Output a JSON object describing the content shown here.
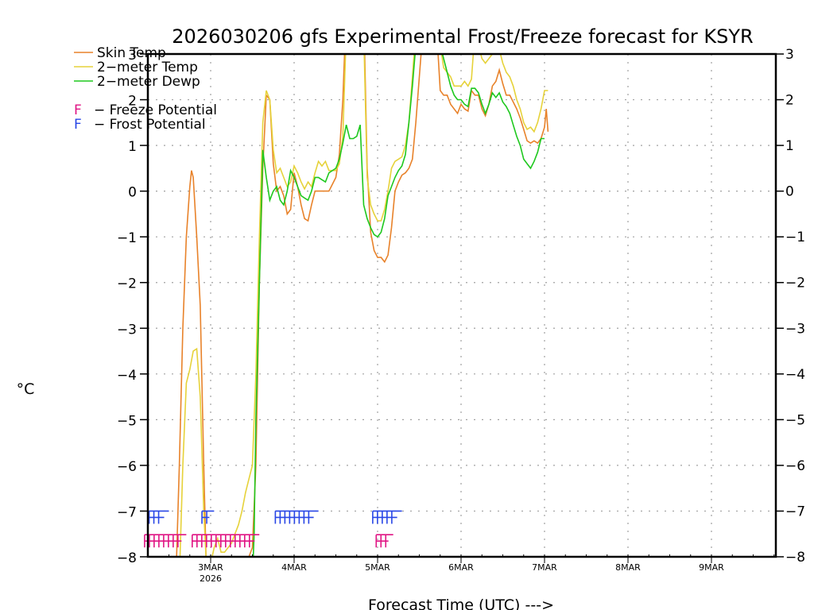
{
  "chart_data": {
    "type": "line",
    "title": "2026030206 gfs Experimental Frost/Freeze forecast for KSYR",
    "xlabel": "Forecast Time (UTC) --->",
    "ylabel": "°C",
    "x_units": "hours since 2026-03-02 06Z",
    "xlim": [
      0,
      180
    ],
    "ylim": [
      -8,
      3
    ],
    "yticks": [
      3,
      2,
      1,
      0,
      -1,
      -2,
      -3,
      -4,
      -5,
      -6,
      -7,
      -8
    ],
    "ytick_labels": [
      "3",
      "2",
      "1",
      "0",
      "−1",
      "−2",
      "−3",
      "−4",
      "−5",
      "−6",
      "−7",
      "−8"
    ],
    "xticks": [
      {
        "hour": 18,
        "label": "3MAR",
        "sublabel": "2026"
      },
      {
        "hour": 42,
        "label": "4MAR",
        "sublabel": ""
      },
      {
        "hour": 66,
        "label": "5MAR",
        "sublabel": ""
      },
      {
        "hour": 90,
        "label": "6MAR",
        "sublabel": ""
      },
      {
        "hour": 114,
        "label": "7MAR",
        "sublabel": ""
      },
      {
        "hour": 138,
        "label": "8MAR",
        "sublabel": ""
      },
      {
        "hour": 162,
        "label": "9MAR",
        "sublabel": ""
      }
    ],
    "grid": true,
    "legend_position": "top-left",
    "series": [
      {
        "name": "Skin Temp",
        "color": "#e8822a",
        "points": [
          [
            8,
            -8.5
          ],
          [
            9,
            -6
          ],
          [
            10,
            -3
          ],
          [
            11,
            -1
          ],
          [
            12,
            0.1
          ],
          [
            12.5,
            0.45
          ],
          [
            13,
            0.3
          ],
          [
            14,
            -1
          ],
          [
            15,
            -2.5
          ],
          [
            16,
            -6
          ],
          [
            17,
            -9
          ],
          [
            24,
            -9
          ],
          [
            30,
            -7.8
          ],
          [
            31,
            -6
          ],
          [
            32,
            -2
          ],
          [
            33,
            0.5
          ],
          [
            34,
            2.1
          ],
          [
            35,
            2.0
          ],
          [
            36,
            0.6
          ],
          [
            37,
            0.0
          ],
          [
            38,
            0.1
          ],
          [
            39,
            -0.1
          ],
          [
            40,
            -0.5
          ],
          [
            41,
            -0.4
          ],
          [
            42,
            0.4
          ],
          [
            43,
            0.1
          ],
          [
            44,
            -0.3
          ],
          [
            45,
            -0.6
          ],
          [
            46,
            -0.65
          ],
          [
            47,
            -0.3
          ],
          [
            48,
            0.0
          ],
          [
            50,
            0.0
          ],
          [
            52,
            0.0
          ],
          [
            54,
            0.3
          ],
          [
            55,
            0.8
          ],
          [
            56,
            2.0
          ],
          [
            57,
            4.0
          ],
          [
            62,
            4.0
          ],
          [
            63,
            0.5
          ],
          [
            64,
            -0.9
          ],
          [
            65,
            -1.3
          ],
          [
            66,
            -1.45
          ],
          [
            67,
            -1.45
          ],
          [
            68,
            -1.55
          ],
          [
            69,
            -1.4
          ],
          [
            70,
            -0.8
          ],
          [
            71,
            0.0
          ],
          [
            72,
            0.2
          ],
          [
            73,
            0.35
          ],
          [
            74,
            0.4
          ],
          [
            75,
            0.5
          ],
          [
            76,
            0.7
          ],
          [
            77,
            1.5
          ],
          [
            78,
            2.5
          ],
          [
            79,
            3.5
          ],
          [
            83,
            3.5
          ],
          [
            84,
            2.2
          ],
          [
            85,
            2.1
          ],
          [
            86,
            2.1
          ],
          [
            87,
            1.9
          ],
          [
            88,
            1.8
          ],
          [
            89,
            1.7
          ],
          [
            90,
            1.9
          ],
          [
            91,
            1.8
          ],
          [
            92,
            1.75
          ],
          [
            93,
            2.2
          ],
          [
            94,
            2.1
          ],
          [
            95,
            2.1
          ],
          [
            96,
            1.8
          ],
          [
            97,
            1.65
          ],
          [
            98,
            1.9
          ],
          [
            99,
            2.3
          ],
          [
            100,
            2.4
          ],
          [
            101,
            2.65
          ],
          [
            102,
            2.35
          ],
          [
            103,
            2.1
          ],
          [
            104,
            2.1
          ],
          [
            105,
            1.95
          ],
          [
            106,
            1.8
          ],
          [
            107,
            1.6
          ],
          [
            108,
            1.35
          ],
          [
            109,
            1.1
          ],
          [
            110,
            1.05
          ],
          [
            111,
            1.1
          ],
          [
            112,
            1.05
          ],
          [
            113,
            1.15
          ],
          [
            114,
            1.4
          ],
          [
            114.5,
            1.8
          ],
          [
            115,
            1.3
          ]
        ]
      },
      {
        "name": "2-meter Temp",
        "color": "#e6d23a",
        "points": [
          [
            9,
            -8.5
          ],
          [
            10,
            -6
          ],
          [
            11,
            -4.2
          ],
          [
            12,
            -3.9
          ],
          [
            13,
            -3.5
          ],
          [
            14,
            -3.45
          ],
          [
            15,
            -4.5
          ],
          [
            16,
            -7
          ],
          [
            17,
            -8.5
          ],
          [
            19,
            -7.8
          ],
          [
            20,
            -7.6
          ],
          [
            21,
            -7.9
          ],
          [
            22,
            -7.9
          ],
          [
            23,
            -7.8
          ],
          [
            24,
            -7.7
          ],
          [
            25,
            -7.5
          ],
          [
            26,
            -7.3
          ],
          [
            27,
            -7.0
          ],
          [
            28,
            -6.6
          ],
          [
            29,
            -6.3
          ],
          [
            30,
            -6.0
          ],
          [
            31,
            -4
          ],
          [
            32,
            -1
          ],
          [
            33,
            1.5
          ],
          [
            34,
            2.2
          ],
          [
            35,
            2.0
          ],
          [
            36,
            0.9
          ],
          [
            37,
            0.4
          ],
          [
            38,
            0.5
          ],
          [
            39,
            0.3
          ],
          [
            40,
            0.1
          ],
          [
            41,
            0.2
          ],
          [
            42,
            0.55
          ],
          [
            43,
            0.4
          ],
          [
            44,
            0.2
          ],
          [
            45,
            0.05
          ],
          [
            46,
            0.2
          ],
          [
            47,
            0.1
          ],
          [
            48,
            0.4
          ],
          [
            49,
            0.65
          ],
          [
            50,
            0.55
          ],
          [
            51,
            0.65
          ],
          [
            52,
            0.45
          ],
          [
            54,
            0.45
          ],
          [
            55,
            0.6
          ],
          [
            56,
            1.2
          ],
          [
            57,
            3.5
          ],
          [
            62,
            3.5
          ],
          [
            63,
            0.3
          ],
          [
            64,
            -0.3
          ],
          [
            65,
            -0.5
          ],
          [
            66,
            -0.65
          ],
          [
            67,
            -0.65
          ],
          [
            68,
            -0.4
          ],
          [
            69,
            0.0
          ],
          [
            70,
            0.5
          ],
          [
            71,
            0.65
          ],
          [
            72,
            0.7
          ],
          [
            73,
            0.75
          ],
          [
            74,
            1.0
          ],
          [
            75,
            1.5
          ],
          [
            76,
            2.5
          ],
          [
            77,
            3.5
          ],
          [
            84,
            3.2
          ],
          [
            85,
            2.7
          ],
          [
            86,
            2.6
          ],
          [
            87,
            2.5
          ],
          [
            88,
            2.3
          ],
          [
            89,
            2.3
          ],
          [
            90,
            2.3
          ],
          [
            91,
            2.4
          ],
          [
            92,
            2.3
          ],
          [
            93,
            2.45
          ],
          [
            94,
            3.5
          ],
          [
            96,
            2.9
          ],
          [
            97,
            2.8
          ],
          [
            98,
            2.9
          ],
          [
            99,
            3.0
          ],
          [
            100,
            3.0
          ],
          [
            101,
            3.1
          ],
          [
            102,
            2.8
          ],
          [
            103,
            2.6
          ],
          [
            104,
            2.5
          ],
          [
            105,
            2.3
          ],
          [
            106,
            2.0
          ],
          [
            107,
            1.8
          ],
          [
            108,
            1.5
          ],
          [
            109,
            1.35
          ],
          [
            110,
            1.4
          ],
          [
            111,
            1.3
          ],
          [
            112,
            1.5
          ],
          [
            113,
            1.8
          ],
          [
            114,
            2.2
          ],
          [
            115,
            2.2
          ]
        ]
      },
      {
        "name": "2-meter Dewp",
        "color": "#1ec81e",
        "points": [
          [
            16,
            -9
          ],
          [
            17,
            -8.2
          ],
          [
            18,
            -9
          ],
          [
            30,
            -8.5
          ],
          [
            30.5,
            -7.5
          ],
          [
            31,
            -5
          ],
          [
            32,
            -2
          ],
          [
            33,
            0.9
          ],
          [
            34,
            0.3
          ],
          [
            35,
            -0.2
          ],
          [
            36,
            0.0
          ],
          [
            37,
            0.1
          ],
          [
            38,
            -0.2
          ],
          [
            39,
            -0.3
          ],
          [
            40,
            0.0
          ],
          [
            41,
            0.45
          ],
          [
            42,
            0.3
          ],
          [
            43,
            0.1
          ],
          [
            44,
            -0.1
          ],
          [
            45,
            -0.15
          ],
          [
            46,
            -0.2
          ],
          [
            47,
            0.0
          ],
          [
            48,
            0.3
          ],
          [
            49,
            0.3
          ],
          [
            50,
            0.25
          ],
          [
            51,
            0.2
          ],
          [
            52,
            0.4
          ],
          [
            54,
            0.5
          ],
          [
            55,
            0.7
          ],
          [
            56,
            1.05
          ],
          [
            57,
            1.45
          ],
          [
            58,
            1.15
          ],
          [
            59,
            1.15
          ],
          [
            60,
            1.2
          ],
          [
            61,
            1.45
          ],
          [
            62,
            -0.3
          ],
          [
            63,
            -0.6
          ],
          [
            64,
            -0.8
          ],
          [
            65,
            -0.95
          ],
          [
            66,
            -1.0
          ],
          [
            67,
            -0.9
          ],
          [
            68,
            -0.6
          ],
          [
            69,
            -0.1
          ],
          [
            70,
            0.1
          ],
          [
            71,
            0.3
          ],
          [
            72,
            0.45
          ],
          [
            73,
            0.55
          ],
          [
            74,
            0.8
          ],
          [
            75,
            1.5
          ],
          [
            76,
            2.3
          ],
          [
            77,
            3.2
          ],
          [
            84,
            3.2
          ],
          [
            85,
            2.9
          ],
          [
            86,
            2.6
          ],
          [
            87,
            2.3
          ],
          [
            88,
            2.1
          ],
          [
            89,
            2.0
          ],
          [
            90,
            2.0
          ],
          [
            91,
            1.9
          ],
          [
            92,
            1.85
          ],
          [
            93,
            2.25
          ],
          [
            94,
            2.25
          ],
          [
            95,
            2.15
          ],
          [
            96,
            1.9
          ],
          [
            97,
            1.7
          ],
          [
            98,
            1.9
          ],
          [
            99,
            2.15
          ],
          [
            100,
            2.05
          ],
          [
            101,
            2.15
          ],
          [
            102,
            1.95
          ],
          [
            103,
            1.85
          ],
          [
            104,
            1.7
          ],
          [
            105,
            1.45
          ],
          [
            106,
            1.2
          ],
          [
            107,
            1.0
          ],
          [
            108,
            0.7
          ],
          [
            109,
            0.6
          ],
          [
            110,
            0.5
          ],
          [
            111,
            0.65
          ],
          [
            112,
            0.85
          ],
          [
            113,
            1.15
          ],
          [
            114,
            1.15
          ]
        ]
      }
    ],
    "markers": {
      "frost": {
        "label": "F",
        "color": "#2846e6",
        "y_level": -7.0,
        "runs": [
          [
            0.3,
            6
          ],
          [
            15.5,
            19
          ],
          [
            36.6,
            49
          ],
          [
            64.6,
            73
          ]
        ]
      },
      "freeze": {
        "label": "F",
        "color": "#e01484",
        "y_level": -7.5,
        "runs": [
          [
            -1,
            11
          ],
          [
            12.7,
            32
          ],
          [
            65.6,
            70.5
          ]
        ]
      }
    },
    "legend": [
      {
        "label": "Skin Temp",
        "kind": "line",
        "color": "#e8822a"
      },
      {
        "label": "2−meter Temp",
        "kind": "line",
        "color": "#e6d23a"
      },
      {
        "label": "2−meter Dewp",
        "kind": "line",
        "color": "#1ec81e"
      },
      {
        "label": "− Freeze Potential",
        "kind": "glyph",
        "glyph": "F",
        "color": "#e01484"
      },
      {
        "label": "− Frost Potential",
        "kind": "glyph",
        "glyph": "F",
        "color": "#2846e6"
      }
    ]
  }
}
